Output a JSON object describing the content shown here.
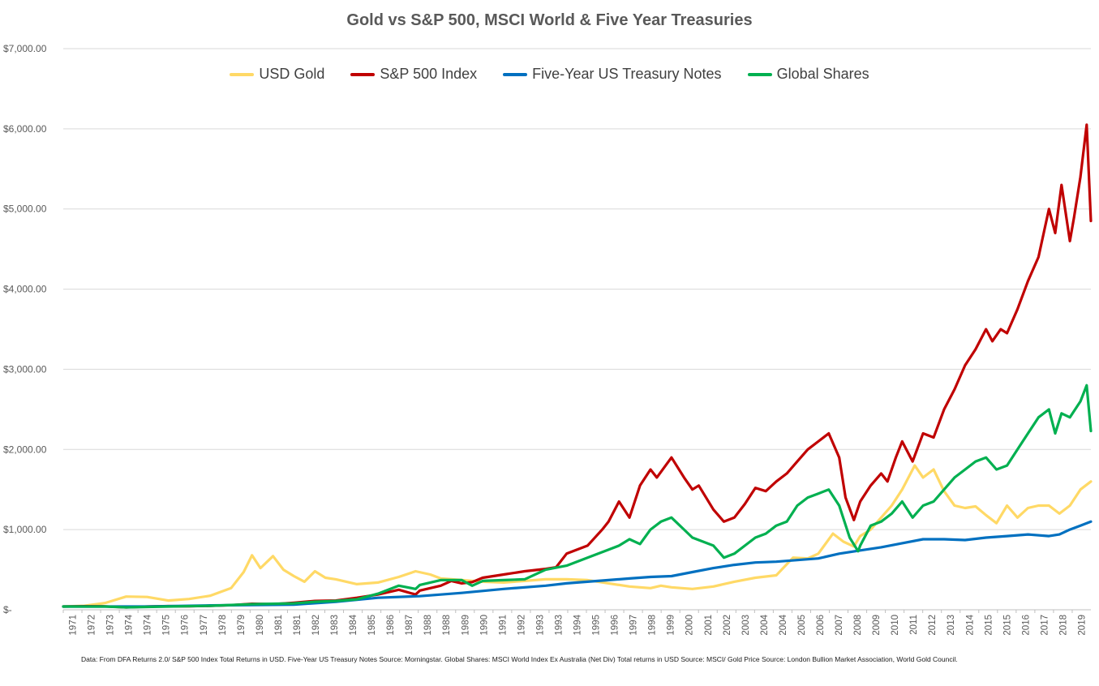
{
  "chart_data": {
    "type": "line",
    "title": "Gold vs S&P 500, MSCI World & Five Year Treasuries",
    "xlabel": "",
    "ylabel": "",
    "x_range": [
      1971,
      2020.0
    ],
    "ylim": [
      0,
      7000
    ],
    "y_ticks": [
      0,
      1000,
      2000,
      3000,
      4000,
      5000,
      6000,
      7000
    ],
    "y_tick_labels": [
      "$-",
      "$1,000.00",
      "$2,000.00",
      "$3,000.00",
      "$4,000.00",
      "$5,000.00",
      "$6,000.00",
      "$7,000.00"
    ],
    "x_tick_labels": [
      "1971",
      "1972",
      "1973",
      "1974",
      "1974",
      "1975",
      "1976",
      "1977",
      "1978",
      "1979",
      "1980",
      "1981",
      "1981",
      "1982",
      "1983",
      "1984",
      "1985",
      "1986",
      "1987",
      "1988",
      "1988",
      "1989",
      "1990",
      "1991",
      "1992",
      "1993",
      "1993",
      "1994",
      "1995",
      "1996",
      "1997",
      "1998",
      "1999",
      "2000",
      "2001",
      "2002",
      "2003",
      "2004",
      "2004",
      "2005",
      "2006",
      "2007",
      "2008",
      "2009",
      "2010",
      "2011",
      "2012",
      "2013",
      "2014",
      "2015",
      "2015",
      "2016",
      "2017",
      "2018",
      "2019"
    ],
    "grid": true,
    "legend_position": "top",
    "series": [
      {
        "name": "USD Gold",
        "color": "#FFD966",
        "points": [
          [
            1971,
            40
          ],
          [
            1972,
            50
          ],
          [
            1973,
            85
          ],
          [
            1974,
            165
          ],
          [
            1975,
            160
          ],
          [
            1976,
            115
          ],
          [
            1977,
            135
          ],
          [
            1978,
            175
          ],
          [
            1979,
            270
          ],
          [
            1979.6,
            470
          ],
          [
            1980,
            680
          ],
          [
            1980.4,
            520
          ],
          [
            1981,
            670
          ],
          [
            1981.5,
            500
          ],
          [
            1982,
            420
          ],
          [
            1982.5,
            350
          ],
          [
            1983,
            480
          ],
          [
            1983.5,
            400
          ],
          [
            1984,
            380
          ],
          [
            1985,
            320
          ],
          [
            1986,
            340
          ],
          [
            1987,
            410
          ],
          [
            1987.8,
            480
          ],
          [
            1988.5,
            440
          ],
          [
            1989,
            390
          ],
          [
            1990,
            370
          ],
          [
            1991,
            350
          ],
          [
            1992,
            340
          ],
          [
            1993,
            360
          ],
          [
            1994,
            380
          ],
          [
            1995,
            380
          ],
          [
            1996,
            370
          ],
          [
            1997,
            330
          ],
          [
            1998,
            290
          ],
          [
            1999,
            270
          ],
          [
            1999.5,
            300
          ],
          [
            2000,
            280
          ],
          [
            2001,
            260
          ],
          [
            2002,
            290
          ],
          [
            2003,
            350
          ],
          [
            2004,
            400
          ],
          [
            2005,
            430
          ],
          [
            2005.8,
            650
          ],
          [
            2006.5,
            640
          ],
          [
            2007,
            700
          ],
          [
            2007.7,
            950
          ],
          [
            2008.2,
            850
          ],
          [
            2008.7,
            790
          ],
          [
            2009,
            920
          ],
          [
            2009.5,
            1000
          ],
          [
            2010,
            1150
          ],
          [
            2010.5,
            1300
          ],
          [
            2011,
            1500
          ],
          [
            2011.6,
            1800
          ],
          [
            2012,
            1650
          ],
          [
            2012.5,
            1750
          ],
          [
            2013,
            1480
          ],
          [
            2013.5,
            1300
          ],
          [
            2014,
            1270
          ],
          [
            2014.5,
            1290
          ],
          [
            2015,
            1180
          ],
          [
            2015.5,
            1080
          ],
          [
            2016,
            1300
          ],
          [
            2016.5,
            1150
          ],
          [
            2017,
            1270
          ],
          [
            2017.5,
            1300
          ],
          [
            2018,
            1300
          ],
          [
            2018.5,
            1200
          ],
          [
            2019,
            1300
          ],
          [
            2019.5,
            1500
          ],
          [
            2020,
            1600
          ]
        ]
      },
      {
        "name": "S&P 500 Index",
        "color": "#C00000",
        "points": [
          [
            1971,
            40
          ],
          [
            1972,
            45
          ],
          [
            1973,
            42
          ],
          [
            1974,
            30
          ],
          [
            1975,
            40
          ],
          [
            1976,
            46
          ],
          [
            1977,
            44
          ],
          [
            1978,
            50
          ],
          [
            1979,
            58
          ],
          [
            1980,
            75
          ],
          [
            1981,
            70
          ],
          [
            1982,
            88
          ],
          [
            1983,
            110
          ],
          [
            1984,
            115
          ],
          [
            1985,
            150
          ],
          [
            1986,
            190
          ],
          [
            1987,
            250
          ],
          [
            1987.8,
            190
          ],
          [
            1988,
            240
          ],
          [
            1989,
            300
          ],
          [
            1989.5,
            360
          ],
          [
            1990,
            330
          ],
          [
            1990.5,
            345
          ],
          [
            1991,
            400
          ],
          [
            1992,
            440
          ],
          [
            1993,
            480
          ],
          [
            1994,
            510
          ],
          [
            1994.5,
            530
          ],
          [
            1995,
            700
          ],
          [
            1996,
            800
          ],
          [
            1996.7,
            1000
          ],
          [
            1997,
            1100
          ],
          [
            1997.5,
            1350
          ],
          [
            1998,
            1150
          ],
          [
            1998.5,
            1550
          ],
          [
            1999,
            1750
          ],
          [
            1999.3,
            1650
          ],
          [
            2000,
            1900
          ],
          [
            2000.6,
            1650
          ],
          [
            2001,
            1500
          ],
          [
            2001.3,
            1550
          ],
          [
            2002,
            1250
          ],
          [
            2002.5,
            1100
          ],
          [
            2003,
            1150
          ],
          [
            2003.5,
            1320
          ],
          [
            2004,
            1520
          ],
          [
            2004.5,
            1480
          ],
          [
            2005,
            1600
          ],
          [
            2005.5,
            1700
          ],
          [
            2006,
            1850
          ],
          [
            2006.5,
            2000
          ],
          [
            2007,
            2100
          ],
          [
            2007.5,
            2200
          ],
          [
            2008,
            1900
          ],
          [
            2008.3,
            1400
          ],
          [
            2008.7,
            1120
          ],
          [
            2009,
            1350
          ],
          [
            2009.5,
            1550
          ],
          [
            2010,
            1700
          ],
          [
            2010.3,
            1600
          ],
          [
            2010.7,
            1900
          ],
          [
            2011,
            2100
          ],
          [
            2011.5,
            1850
          ],
          [
            2012,
            2200
          ],
          [
            2012.5,
            2150
          ],
          [
            2013,
            2500
          ],
          [
            2013.5,
            2750
          ],
          [
            2014,
            3050
          ],
          [
            2014.5,
            3250
          ],
          [
            2015,
            3500
          ],
          [
            2015.3,
            3350
          ],
          [
            2015.7,
            3500
          ],
          [
            2016,
            3450
          ],
          [
            2016.5,
            3750
          ],
          [
            2017,
            4100
          ],
          [
            2017.5,
            4400
          ],
          [
            2018,
            5000
          ],
          [
            2018.3,
            4700
          ],
          [
            2018.6,
            5300
          ],
          [
            2019,
            4600
          ],
          [
            2019.2,
            4900
          ],
          [
            2019.5,
            5400
          ],
          [
            2019.8,
            6050
          ],
          [
            2020,
            4850
          ]
        ]
      },
      {
        "name": "Five-Year US Treasury Notes",
        "color": "#0070C0",
        "points": [
          [
            1971,
            40
          ],
          [
            1975,
            40
          ],
          [
            1978,
            55
          ],
          [
            1980,
            60
          ],
          [
            1982,
            65
          ],
          [
            1984,
            100
          ],
          [
            1986,
            150
          ],
          [
            1988,
            170
          ],
          [
            1990,
            210
          ],
          [
            1992,
            260
          ],
          [
            1994,
            300
          ],
          [
            1995,
            330
          ],
          [
            1996,
            350
          ],
          [
            1997,
            370
          ],
          [
            1998,
            390
          ],
          [
            1999,
            410
          ],
          [
            2000,
            420
          ],
          [
            2001,
            470
          ],
          [
            2002,
            520
          ],
          [
            2003,
            560
          ],
          [
            2004,
            590
          ],
          [
            2005,
            600
          ],
          [
            2006,
            620
          ],
          [
            2007,
            640
          ],
          [
            2008,
            700
          ],
          [
            2009,
            740
          ],
          [
            2010,
            780
          ],
          [
            2011,
            830
          ],
          [
            2012,
            880
          ],
          [
            2013,
            880
          ],
          [
            2014,
            870
          ],
          [
            2015,
            900
          ],
          [
            2016,
            920
          ],
          [
            2017,
            940
          ],
          [
            2018,
            920
          ],
          [
            2018.5,
            940
          ],
          [
            2019,
            1000
          ],
          [
            2019.5,
            1050
          ],
          [
            2020,
            1100
          ]
        ]
      },
      {
        "name": "Global Shares",
        "color": "#00B050",
        "points": [
          [
            1971,
            40
          ],
          [
            1973,
            40
          ],
          [
            1974,
            30
          ],
          [
            1976,
            40
          ],
          [
            1978,
            50
          ],
          [
            1980,
            70
          ],
          [
            1981,
            75
          ],
          [
            1982,
            80
          ],
          [
            1983,
            100
          ],
          [
            1984,
            110
          ],
          [
            1985,
            130
          ],
          [
            1986,
            200
          ],
          [
            1987,
            300
          ],
          [
            1987.8,
            260
          ],
          [
            1988,
            310
          ],
          [
            1989,
            370
          ],
          [
            1990,
            370
          ],
          [
            1990.5,
            300
          ],
          [
            1991,
            360
          ],
          [
            1992,
            370
          ],
          [
            1993,
            380
          ],
          [
            1994,
            500
          ],
          [
            1995,
            550
          ],
          [
            1996,
            650
          ],
          [
            1997,
            750
          ],
          [
            1997.5,
            800
          ],
          [
            1998,
            880
          ],
          [
            1998.5,
            820
          ],
          [
            1999,
            1000
          ],
          [
            1999.5,
            1100
          ],
          [
            2000,
            1150
          ],
          [
            2000.6,
            1000
          ],
          [
            2001,
            900
          ],
          [
            2002,
            800
          ],
          [
            2002.5,
            650
          ],
          [
            2003,
            700
          ],
          [
            2003.5,
            800
          ],
          [
            2004,
            900
          ],
          [
            2004.5,
            950
          ],
          [
            2005,
            1050
          ],
          [
            2005.5,
            1100
          ],
          [
            2006,
            1300
          ],
          [
            2006.5,
            1400
          ],
          [
            2007,
            1450
          ],
          [
            2007.5,
            1500
          ],
          [
            2008,
            1300
          ],
          [
            2008.5,
            900
          ],
          [
            2008.9,
            730
          ],
          [
            2009,
            800
          ],
          [
            2009.5,
            1050
          ],
          [
            2010,
            1100
          ],
          [
            2010.5,
            1200
          ],
          [
            2011,
            1350
          ],
          [
            2011.5,
            1150
          ],
          [
            2012,
            1300
          ],
          [
            2012.5,
            1350
          ],
          [
            2013,
            1500
          ],
          [
            2013.5,
            1650
          ],
          [
            2014,
            1750
          ],
          [
            2014.5,
            1850
          ],
          [
            2015,
            1900
          ],
          [
            2015.5,
            1750
          ],
          [
            2016,
            1800
          ],
          [
            2016.5,
            2000
          ],
          [
            2017,
            2200
          ],
          [
            2017.5,
            2400
          ],
          [
            2018,
            2500
          ],
          [
            2018.3,
            2200
          ],
          [
            2018.6,
            2450
          ],
          [
            2019,
            2400
          ],
          [
            2019.5,
            2600
          ],
          [
            2019.8,
            2800
          ],
          [
            2020,
            2230
          ]
        ]
      }
    ],
    "source_note": "Data: From DFA Returns 2.0/ S&P 500 Index Total Returns in USD. Five-Year US Treasury Notes Source: Morningstar. Global Shares: MSCI World Index Ex Australia (Net Div) Total returns in USD Source: MSCI/ Gold Price Source: London Bullion Market Association, World Gold Council."
  }
}
